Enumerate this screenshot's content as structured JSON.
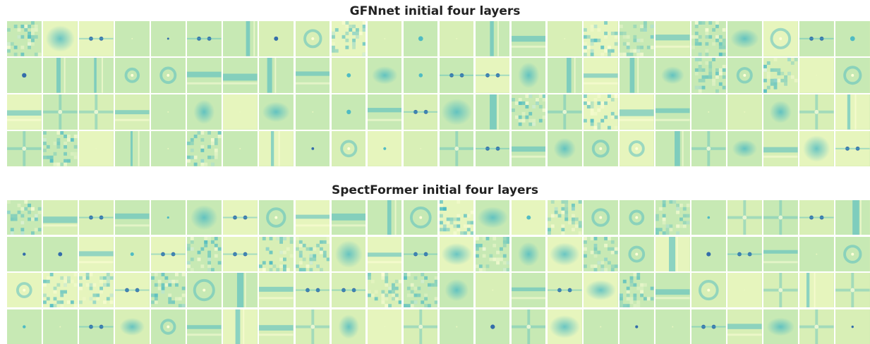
{
  "figure": {
    "panels": [
      {
        "title": "GFNnet initial four layers",
        "rows": 4,
        "cols": 24
      },
      {
        "title": "SpectFormer initial four layers",
        "rows": 4,
        "cols": 24
      }
    ],
    "colormap": "YlGnBu",
    "colors": {
      "low": "#ffffd9",
      "mid": "#c7e9b4",
      "high": "#41b6c4",
      "peak": "#225ea8",
      "background": "#ffffff"
    }
  }
}
